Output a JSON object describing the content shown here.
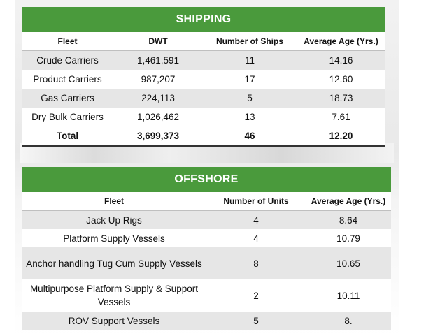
{
  "shipping": {
    "title": "SHIPPING",
    "headers": [
      "Fleet",
      "DWT",
      "Number of Ships",
      "Average Age (Yrs.)"
    ],
    "rows": [
      [
        "Crude Carriers",
        "1,461,591",
        "11",
        "14.16"
      ],
      [
        "Product Carriers",
        "987,207",
        "17",
        "12.60"
      ],
      [
        "Gas Carriers",
        "224,113",
        "5",
        "18.73"
      ],
      [
        "Dry Bulk Carriers",
        "1,026,462",
        "13",
        "7.61"
      ]
    ],
    "total": [
      "Total",
      "3,699,373",
      "46",
      "12.20"
    ]
  },
  "offshore": {
    "title": "OFFSHORE",
    "headers": [
      "Fleet",
      "Number of Units",
      "Average Age (Yrs.)"
    ],
    "rows": [
      [
        "Jack Up Rigs",
        "4",
        "8.64"
      ],
      [
        "Platform Supply Vessels",
        "4",
        "10.79"
      ],
      [
        "Anchor handling Tug Cum Supply Vessels",
        "8",
        "10.65"
      ],
      [
        "Multipurpose Platform Supply & Support Vessels",
        "2",
        "10.11"
      ],
      [
        "ROV Support Vessels",
        "5",
        "8."
      ]
    ]
  },
  "colors": {
    "banner_green": "#4a9a3c",
    "row_shade": "#e6e6e6"
  }
}
